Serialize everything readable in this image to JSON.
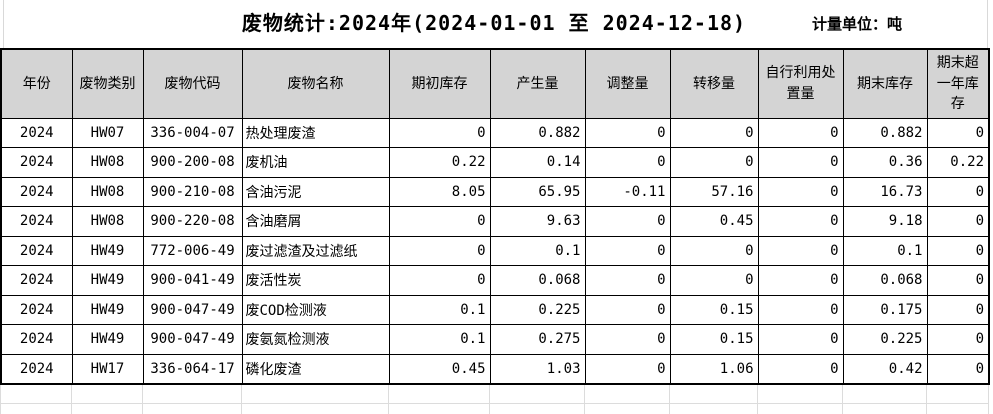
{
  "title": "废物统计:2024年(2024-01-01 至 2024-12-18)",
  "unit_label": "计量单位：吨",
  "colors": {
    "header_bg": "#d4d4d4",
    "table_border": "#000000",
    "ghost_grid": "#dcdcdc",
    "background": "#ffffff"
  },
  "table": {
    "columns": [
      "年份",
      "废物类别",
      "废物代码",
      "废物名称",
      "期初库存",
      "产生量",
      "调整量",
      "转移量",
      "自行利用处置量",
      "期末库存",
      "期末超一年库存"
    ],
    "rows": [
      [
        "2024",
        "HW07",
        "336-004-07",
        "热处理废渣",
        "0",
        "0.882",
        "0",
        "0",
        "0",
        "0.882",
        "0"
      ],
      [
        "2024",
        "HW08",
        "900-200-08",
        "废机油",
        "0.22",
        "0.14",
        "0",
        "0",
        "0",
        "0.36",
        "0.22"
      ],
      [
        "2024",
        "HW08",
        "900-210-08",
        "含油污泥",
        "8.05",
        "65.95",
        "-0.11",
        "57.16",
        "0",
        "16.73",
        "0"
      ],
      [
        "2024",
        "HW08",
        "900-220-08",
        "含油磨屑",
        "0",
        "9.63",
        "0",
        "0.45",
        "0",
        "9.18",
        "0"
      ],
      [
        "2024",
        "HW49",
        "772-006-49",
        "废过滤渣及过滤纸",
        "0",
        "0.1",
        "0",
        "0",
        "0",
        "0.1",
        "0"
      ],
      [
        "2024",
        "HW49",
        "900-041-49",
        "废活性炭",
        "0",
        "0.068",
        "0",
        "0",
        "0",
        "0.068",
        "0"
      ],
      [
        "2024",
        "HW49",
        "900-047-49",
        "废COD检测液",
        "0.1",
        "0.225",
        "0",
        "0.15",
        "0",
        "0.175",
        "0"
      ],
      [
        "2024",
        "HW49",
        "900-047-49",
        "废氨氮检测液",
        "0.1",
        "0.275",
        "0",
        "0.15",
        "0",
        "0.225",
        "0"
      ],
      [
        "2024",
        "HW17",
        "336-064-17",
        "磷化废渣",
        "0.45",
        "1.03",
        "0",
        "1.06",
        "0",
        "0.42",
        "0"
      ]
    ]
  }
}
